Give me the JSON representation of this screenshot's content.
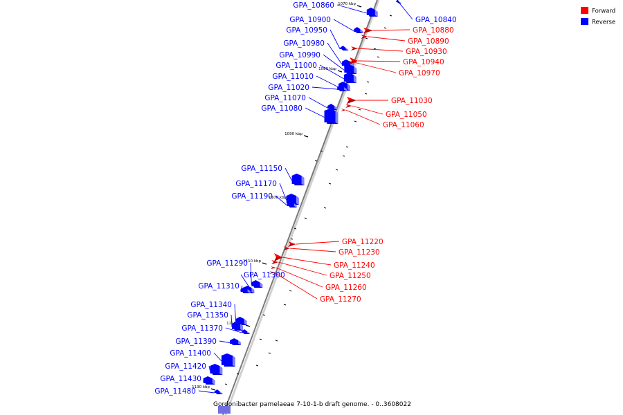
{
  "caption": "Gordonibacter pamelaeae 7-10-1-b draft genome. - 0..3608022",
  "legend": [
    {
      "label": "Forward",
      "color": "#ff0000"
    },
    {
      "label": "Reverse",
      "color": "#0000ff"
    }
  ],
  "scale_labels": [
    "1070 kbp",
    "1080 kbp",
    "1090 kbp",
    "1100 kbp",
    "1110 kbp",
    "1120 kbp",
    "1130 kbp"
  ],
  "genes": [
    {
      "name": "GPA_10860",
      "strand": "reverse"
    },
    {
      "name": "GPA_10840",
      "strand": "reverse"
    },
    {
      "name": "GPA_10900",
      "strand": "reverse"
    },
    {
      "name": "GPA_10880",
      "strand": "forward"
    },
    {
      "name": "GPA_10950",
      "strand": "reverse"
    },
    {
      "name": "GPA_10890",
      "strand": "forward"
    },
    {
      "name": "GPA_10980",
      "strand": "reverse"
    },
    {
      "name": "GPA_10930",
      "strand": "forward"
    },
    {
      "name": "GPA_10990",
      "strand": "reverse"
    },
    {
      "name": "GPA_10940",
      "strand": "forward"
    },
    {
      "name": "GPA_11000",
      "strand": "reverse"
    },
    {
      "name": "GPA_10970",
      "strand": "forward"
    },
    {
      "name": "GPA_11010",
      "strand": "reverse"
    },
    {
      "name": "GPA_11020",
      "strand": "reverse"
    },
    {
      "name": "GPA_11070",
      "strand": "reverse"
    },
    {
      "name": "GPA_11030",
      "strand": "forward"
    },
    {
      "name": "GPA_11080",
      "strand": "reverse"
    },
    {
      "name": "GPA_11050",
      "strand": "forward"
    },
    {
      "name": "GPA_11060",
      "strand": "forward"
    },
    {
      "name": "GPA_11150",
      "strand": "reverse"
    },
    {
      "name": "GPA_11170",
      "strand": "reverse"
    },
    {
      "name": "GPA_11190",
      "strand": "reverse"
    },
    {
      "name": "GPA_11220",
      "strand": "forward"
    },
    {
      "name": "GPA_11230",
      "strand": "forward"
    },
    {
      "name": "GPA_11290",
      "strand": "reverse"
    },
    {
      "name": "GPA_11240",
      "strand": "forward"
    },
    {
      "name": "GPA_11300",
      "strand": "reverse"
    },
    {
      "name": "GPA_11250",
      "strand": "forward"
    },
    {
      "name": "GPA_11310",
      "strand": "reverse"
    },
    {
      "name": "GPA_11260",
      "strand": "forward"
    },
    {
      "name": "GPA_11270",
      "strand": "forward"
    },
    {
      "name": "GPA_11340",
      "strand": "reverse"
    },
    {
      "name": "GPA_11350",
      "strand": "reverse"
    },
    {
      "name": "GPA_11370",
      "strand": "reverse"
    },
    {
      "name": "GPA_11390",
      "strand": "reverse"
    },
    {
      "name": "GPA_11400",
      "strand": "reverse"
    },
    {
      "name": "GPA_11420",
      "strand": "reverse"
    },
    {
      "name": "GPA_11430",
      "strand": "reverse"
    },
    {
      "name": "GPA_11480",
      "strand": "reverse"
    }
  ]
}
